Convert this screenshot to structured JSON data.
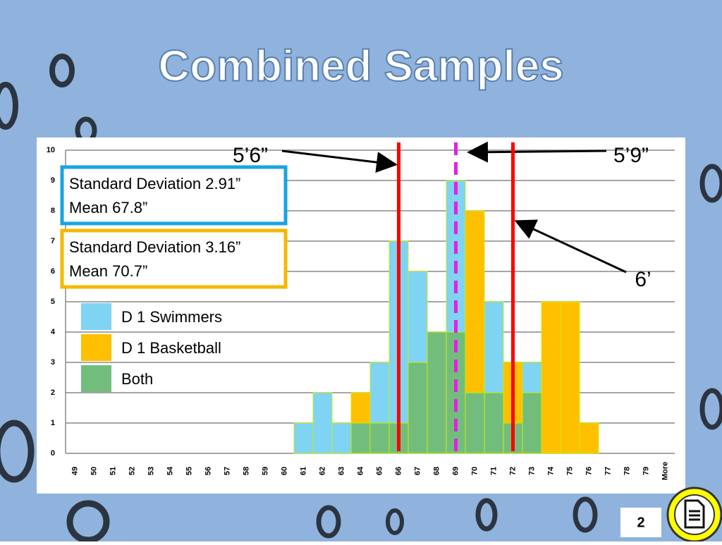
{
  "chart_data": {
    "type": "bar",
    "title": "Combined Samples",
    "categories": [
      49,
      50,
      51,
      52,
      53,
      54,
      55,
      56,
      57,
      58,
      59,
      60,
      61,
      62,
      63,
      64,
      65,
      66,
      67,
      68,
      69,
      70,
      71,
      72,
      73,
      74,
      75,
      76,
      77,
      78,
      79,
      "More"
    ],
    "series": [
      {
        "name": "D 1 Swimmers",
        "color": "#7fd3f3",
        "values": [
          0,
          0,
          0,
          0,
          0,
          0,
          0,
          0,
          0,
          0,
          0,
          0,
          1,
          2,
          1,
          1,
          3,
          7,
          6,
          4,
          9,
          2,
          5,
          1,
          3,
          0,
          0,
          0,
          0,
          0,
          0,
          0
        ]
      },
      {
        "name": "D 1 Basketball",
        "color": "#ffc000",
        "values": [
          0,
          0,
          0,
          0,
          0,
          0,
          0,
          0,
          0,
          0,
          0,
          0,
          0,
          0,
          0,
          2,
          1,
          1,
          3,
          4,
          4,
          8,
          2,
          3,
          2,
          5,
          5,
          1,
          0,
          0,
          0,
          0
        ]
      },
      {
        "name": "Both",
        "color": "#73bd7c",
        "values": [
          0,
          0,
          0,
          0,
          0,
          0,
          0,
          0,
          0,
          0,
          0,
          0,
          0,
          0,
          0,
          1,
          1,
          1,
          3,
          4,
          4,
          2,
          2,
          1,
          2,
          0,
          0,
          0,
          0,
          0,
          0,
          0
        ]
      }
    ],
    "ylim": [
      0,
      10
    ],
    "yticks": [
      0,
      1,
      2,
      3,
      4,
      5,
      6,
      7,
      8,
      9,
      10
    ],
    "grid": true,
    "stat_boxes": [
      {
        "color": "#1aa3e0",
        "lines": [
          "Standard Deviation 2.91”",
          "Mean 67.8”"
        ]
      },
      {
        "color": "#f5b800",
        "lines": [
          "Standard Deviation 3.16”",
          "Mean 70.7”"
        ]
      }
    ],
    "reference_lines": [
      {
        "label": "5’6”",
        "value": 66,
        "color": "#ff0000"
      },
      {
        "label": "5’9”",
        "value": 69,
        "color": "#e61ee6"
      },
      {
        "label": "6’",
        "value": 72,
        "color": "#ff0000"
      }
    ],
    "page_number": "2"
  }
}
